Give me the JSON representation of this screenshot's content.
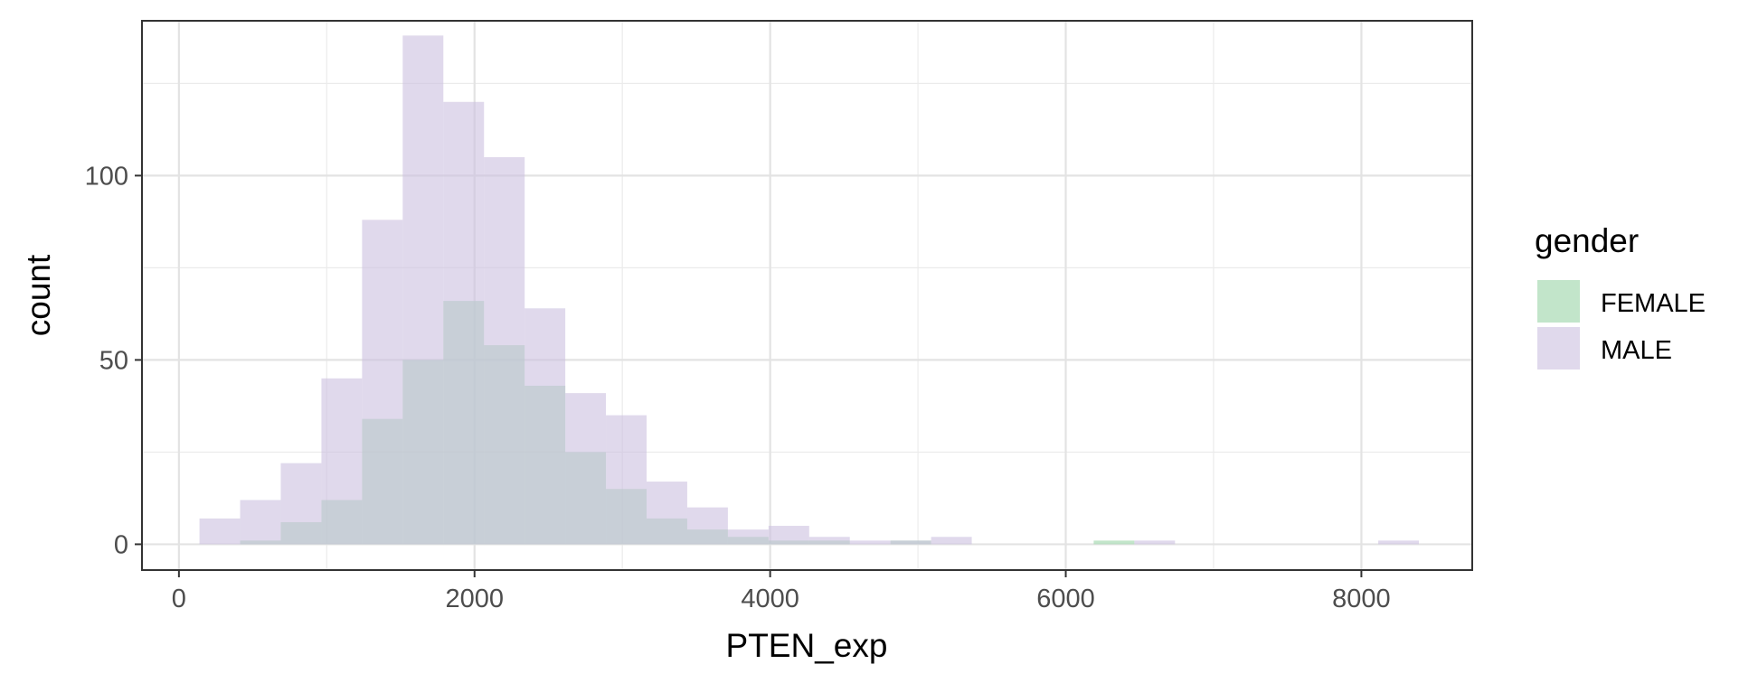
{
  "chart_data": {
    "type": "bar",
    "subtype": "overlaid-histogram",
    "xlabel": "PTEN_exp",
    "ylabel": "count",
    "xlim": [
      -250,
      8750
    ],
    "ylim": [
      -7,
      142
    ],
    "x_ticks": [
      0,
      2000,
      4000,
      6000,
      8000
    ],
    "x_minor_ticks": [
      1000,
      3000,
      5000,
      7000
    ],
    "y_ticks": [
      0,
      50,
      100
    ],
    "y_minor_ticks": [
      25,
      75,
      125
    ],
    "grid": true,
    "legend": {
      "title": "gender",
      "position": "right"
    },
    "bins": [
      [
        139,
        414
      ],
      [
        414,
        689
      ],
      [
        689,
        964
      ],
      [
        964,
        1239
      ],
      [
        1239,
        1514
      ],
      [
        1514,
        1789
      ],
      [
        1789,
        2064
      ],
      [
        2064,
        2339
      ],
      [
        2339,
        2614
      ],
      [
        2614,
        2889
      ],
      [
        2889,
        3164
      ],
      [
        3164,
        3439
      ],
      [
        3439,
        3714
      ],
      [
        3714,
        3989
      ],
      [
        3989,
        4264
      ],
      [
        4264,
        4539
      ],
      [
        4539,
        4814
      ],
      [
        4814,
        5089
      ],
      [
        5089,
        5364
      ],
      [
        5364,
        5639
      ],
      [
        5639,
        5914
      ],
      [
        5914,
        6189
      ],
      [
        6189,
        6464
      ],
      [
        6464,
        6739
      ],
      [
        6739,
        7014
      ],
      [
        7014,
        7289
      ],
      [
        7289,
        7564
      ],
      [
        7564,
        7839
      ],
      [
        7839,
        8114
      ],
      [
        8114,
        8389
      ]
    ],
    "series": [
      {
        "name": "FEMALE",
        "color": "#a8dab3",
        "opacity": 0.7,
        "values": [
          0,
          1,
          6,
          12,
          34,
          50,
          66,
          54,
          43,
          25,
          15,
          7,
          4,
          2,
          1,
          1,
          0,
          1,
          0,
          0,
          0,
          0,
          1,
          0,
          0,
          0,
          0,
          0,
          0,
          0
        ]
      },
      {
        "name": "MALE",
        "color": "#cbbfe0",
        "opacity": 0.6,
        "values": [
          7,
          12,
          22,
          45,
          88,
          138,
          120,
          105,
          64,
          41,
          35,
          17,
          10,
          4,
          5,
          2,
          1,
          1,
          2,
          0,
          0,
          0,
          0,
          1,
          0,
          0,
          0,
          0,
          0,
          1
        ]
      }
    ]
  }
}
